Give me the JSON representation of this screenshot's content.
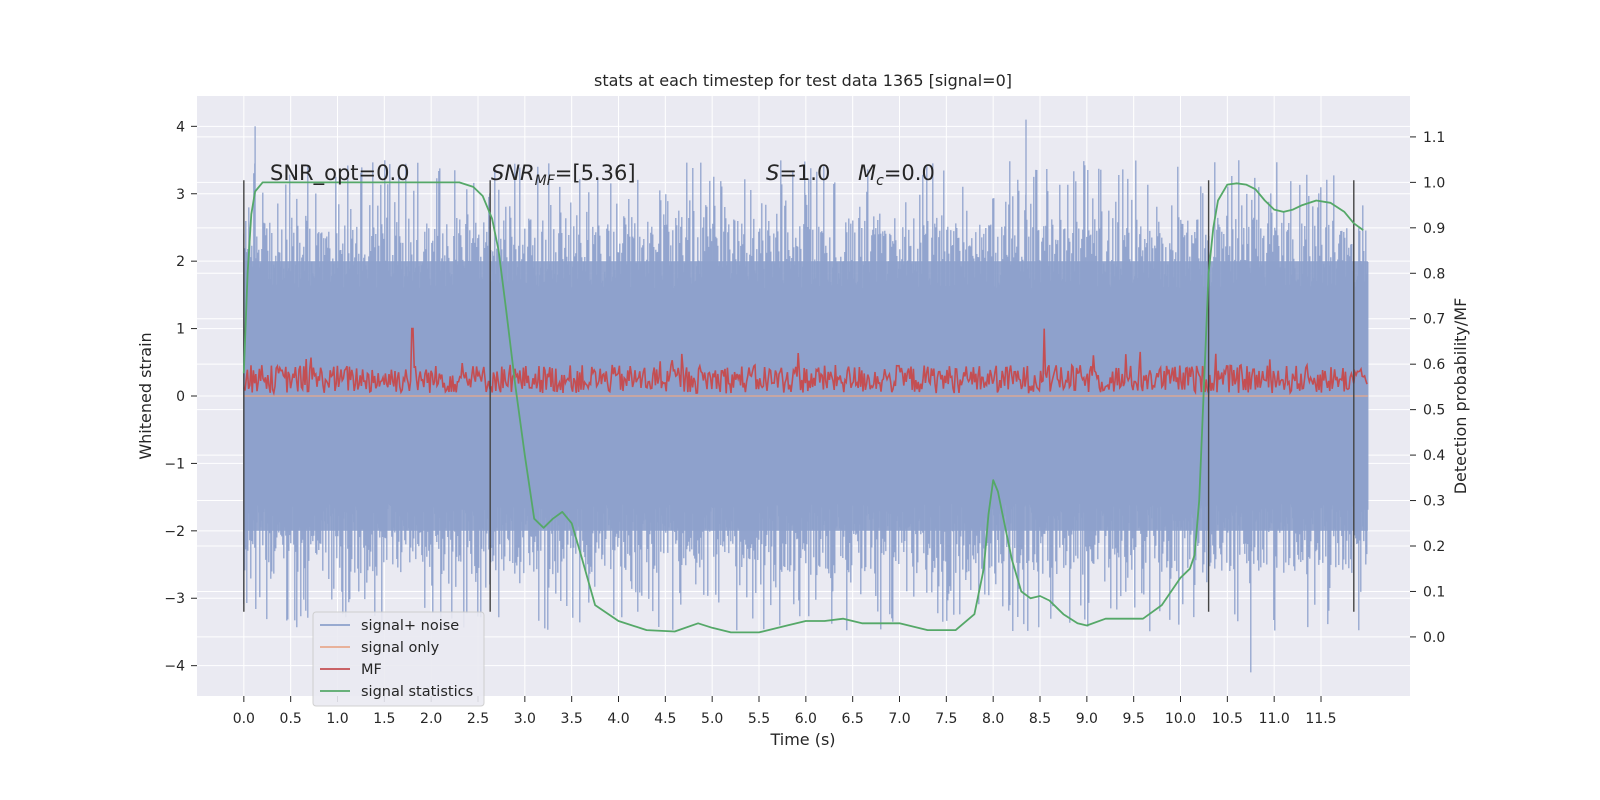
{
  "chart_data": {
    "type": "line",
    "title": "stats at each timestep for test data 1365 [signal=0]",
    "xlabel": "Time (s)",
    "ylabel_left": "Whitened strain",
    "ylabel_right": "Detection probability/MF",
    "xlim": [
      -0.5,
      12.45
    ],
    "ylim_left": [
      -4.45,
      4.45
    ],
    "ylim_right": [
      -0.13,
      1.19
    ],
    "grid": true,
    "x_ticks": [
      "0.0",
      "0.5",
      "1.0",
      "1.5",
      "2.0",
      "2.5",
      "3.0",
      "3.5",
      "4.0",
      "4.5",
      "5.0",
      "5.5",
      "6.0",
      "6.5",
      "7.0",
      "7.5",
      "8.0",
      "8.5",
      "9.0",
      "9.5",
      "10.0",
      "10.5",
      "11.0",
      "11.5"
    ],
    "y_left_ticks": [
      "4",
      "3",
      "2",
      "1",
      "0",
      "−1",
      "−2",
      "−3",
      "−4"
    ],
    "y_right_ticks": [
      "1.1",
      "1.0",
      "0.9",
      "0.8",
      "0.7",
      "0.6",
      "0.5",
      "0.4",
      "0.3",
      "0.2",
      "0.1",
      "0.0"
    ],
    "annotations": {
      "snr_opt": "SNR_opt=0.0",
      "snr_mf_sym": "SNR",
      "snr_mf_sub": "MF",
      "snr_mf_val": "=[5.36]",
      "s_sym": "S",
      "s_val": "=1.0",
      "mc_sym": "M",
      "mc_sub": "c",
      "mc_val": "=0.0"
    },
    "vertical_markers_s": [
      0.0,
      2.63,
      10.3,
      11.85
    ],
    "legend": {
      "placement": "lower-left",
      "entries": [
        "signal+ noise",
        "signal only",
        "MF",
        "signal statistics"
      ]
    },
    "colors": {
      "background": "#eaeaf2",
      "grid": "#ffffff",
      "signal_noise": "#8da0cb",
      "signal_only": "#e8a98d",
      "mf": "#c44e52",
      "signal_statistics": "#55a868",
      "marker": "#444444"
    },
    "series": [
      {
        "name": "signal statistics",
        "axis": "right",
        "x": [
          0.0,
          0.04,
          0.08,
          0.12,
          0.2,
          0.35,
          0.6,
          1.0,
          1.5,
          2.0,
          2.3,
          2.45,
          2.55,
          2.65,
          2.72,
          2.8,
          2.9,
          3.0,
          3.1,
          3.2,
          3.3,
          3.4,
          3.5,
          3.6,
          3.75,
          4.0,
          4.3,
          4.6,
          4.85,
          5.0,
          5.2,
          5.5,
          5.8,
          6.0,
          6.2,
          6.4,
          6.6,
          6.8,
          7.0,
          7.3,
          7.6,
          7.8,
          7.9,
          7.95,
          8.0,
          8.05,
          8.1,
          8.2,
          8.3,
          8.4,
          8.5,
          8.6,
          8.75,
          8.9,
          9.0,
          9.2,
          9.4,
          9.6,
          9.8,
          10.0,
          10.1,
          10.15,
          10.2,
          10.25,
          10.3,
          10.35,
          10.4,
          10.5,
          10.6,
          10.7,
          10.8,
          10.9,
          11.0,
          11.1,
          11.2,
          11.3,
          11.45,
          11.6,
          11.75,
          11.85,
          11.95
        ],
        "y": [
          0.58,
          0.8,
          0.93,
          0.98,
          1.0,
          1.0,
          1.0,
          1.0,
          1.0,
          1.0,
          1.0,
          0.99,
          0.97,
          0.92,
          0.85,
          0.72,
          0.55,
          0.4,
          0.26,
          0.24,
          0.26,
          0.275,
          0.25,
          0.18,
          0.07,
          0.035,
          0.015,
          0.012,
          0.03,
          0.02,
          0.01,
          0.01,
          0.025,
          0.035,
          0.035,
          0.04,
          0.03,
          0.03,
          0.03,
          0.015,
          0.015,
          0.05,
          0.15,
          0.27,
          0.345,
          0.32,
          0.27,
          0.17,
          0.1,
          0.085,
          0.09,
          0.08,
          0.05,
          0.03,
          0.025,
          0.04,
          0.04,
          0.04,
          0.07,
          0.13,
          0.15,
          0.18,
          0.3,
          0.55,
          0.8,
          0.9,
          0.96,
          0.995,
          0.998,
          0.995,
          0.985,
          0.96,
          0.94,
          0.935,
          0.94,
          0.95,
          0.96,
          0.955,
          0.935,
          0.91,
          0.895
        ]
      },
      {
        "name": "MF",
        "axis": "left",
        "x_range": [
          0.0,
          12.0
        ],
        "baseline": 0.25,
        "spikes": [
          {
            "x": 1.8,
            "y": 1.0
          },
          {
            "x": 8.55,
            "y": 1.0
          }
        ]
      },
      {
        "name": "signal+ noise",
        "axis": "left",
        "x_range": [
          0.0,
          12.0
        ],
        "typical_band": [
          -2.0,
          2.0
        ],
        "extremes": [
          {
            "x": 0.12,
            "y": 4.0
          },
          {
            "x": 8.35,
            "y": 4.1
          },
          {
            "x": 10.75,
            "y": -4.1
          }
        ]
      },
      {
        "name": "signal only",
        "axis": "left",
        "x_range": [
          0.0,
          12.0
        ],
        "constant": 0.0
      }
    ]
  }
}
